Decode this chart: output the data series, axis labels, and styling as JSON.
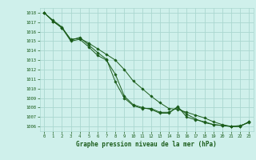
{
  "title": "Graphe pression niveau de la mer (hPa)",
  "bg_color": "#cff0eb",
  "grid_color": "#aad8d0",
  "line_color": "#1a5c1a",
  "xlim": [
    -0.5,
    23.5
  ],
  "ylim": [
    1005.5,
    1018.5
  ],
  "xticks": [
    0,
    1,
    2,
    3,
    4,
    5,
    6,
    7,
    8,
    9,
    10,
    11,
    12,
    13,
    14,
    15,
    16,
    17,
    18,
    19,
    20,
    21,
    22,
    23
  ],
  "yticks": [
    1006,
    1007,
    1008,
    1009,
    1010,
    1011,
    1012,
    1013,
    1014,
    1015,
    1016,
    1017,
    1018
  ],
  "series": [
    [
      1018.0,
      1017.1,
      1016.4,
      1015.0,
      1015.2,
      1014.4,
      1013.5,
      1013.0,
      1011.5,
      1009.2,
      1008.3,
      1008.0,
      1007.8,
      1007.4,
      1007.4,
      1008.1,
      1007.0,
      1006.7,
      1006.5,
      1006.2,
      1006.1,
      1006.0,
      1006.1,
      1006.4
    ],
    [
      1018.0,
      1017.1,
      1016.4,
      1015.2,
      1015.3,
      1014.8,
      1014.2,
      1013.6,
      1013.0,
      1012.0,
      1010.8,
      1010.0,
      1009.2,
      1008.5,
      1007.9,
      1007.8,
      1007.5,
      1007.2,
      1006.9,
      1006.5,
      1006.2,
      1006.0,
      1006.0,
      1006.5
    ],
    [
      1018.0,
      1017.2,
      1016.5,
      1015.1,
      1015.4,
      1014.6,
      1013.8,
      1013.1,
      1010.7,
      1009.0,
      1008.2,
      1007.9,
      1007.9,
      1007.5,
      1007.5,
      1008.0,
      1007.3,
      1006.8,
      1006.4,
      1006.2,
      1006.1,
      1006.0,
      1006.0,
      1006.5
    ]
  ]
}
